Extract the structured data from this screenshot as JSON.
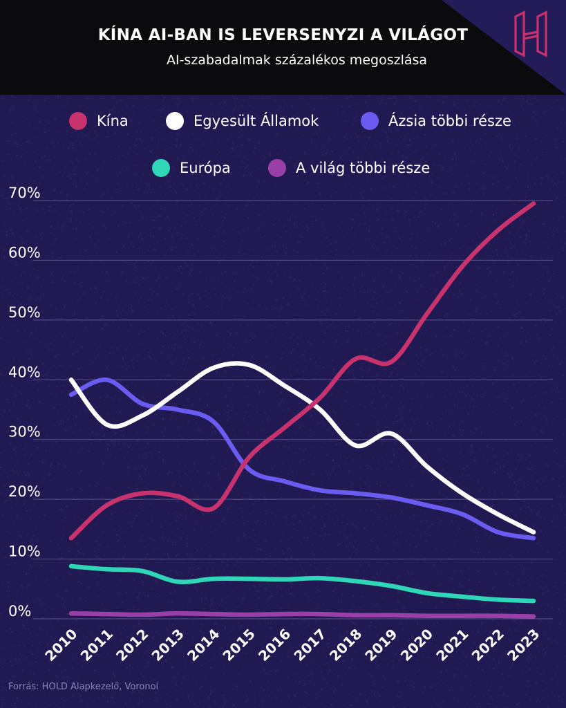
{
  "header": {
    "title": "KÍNA AI-BAN IS LEVERSENYZI A VILÁGOT",
    "subtitle": "AI-szabadalmak százalékos megoszlása"
  },
  "colors": {
    "background": "#211a52",
    "header_background": "#0b0b0d",
    "logo": "#c8326d",
    "grid": "#5a5490"
  },
  "logo": {
    "icon": "hold-h-logo-icon"
  },
  "legend": [
    {
      "label": "Kína",
      "color": "#c8326d"
    },
    {
      "label": "Egyesült Államok",
      "color": "#ffffff"
    },
    {
      "label": "Ázsia többi része",
      "color": "#6a5cf0"
    },
    {
      "label": "Európa",
      "color": "#2fd6b8"
    },
    {
      "label": "A világ többi része",
      "color": "#9b3fa8"
    }
  ],
  "chart_data": {
    "type": "line",
    "x": [
      "2010",
      "2011",
      "2012",
      "2013",
      "2014",
      "2015",
      "2016",
      "2017",
      "2018",
      "2019",
      "2020",
      "2021",
      "2022",
      "2023"
    ],
    "ylim": [
      0,
      70
    ],
    "yticks": [
      "0%",
      "10%",
      "20%",
      "30%",
      "40%",
      "50%",
      "60%",
      "70%"
    ],
    "grid": true,
    "legend_position": "top",
    "series": [
      {
        "name": "Kína",
        "color": "#c8326d",
        "values": [
          13.5,
          19,
          21,
          20.5,
          18.5,
          27,
          32,
          37,
          43.5,
          43,
          51,
          59,
          65,
          69.5
        ]
      },
      {
        "name": "Egyesült Államok",
        "color": "#ffffff",
        "values": [
          40,
          32.5,
          34,
          38,
          42,
          42.5,
          39,
          35,
          29,
          31,
          25.5,
          21,
          17.5,
          14.5
        ]
      },
      {
        "name": "Ázsia többi része",
        "color": "#6a5cf0",
        "values": [
          37.5,
          40,
          36,
          35,
          33,
          25,
          23,
          21.5,
          21,
          20.3,
          19,
          17.5,
          14.5,
          13.5
        ]
      },
      {
        "name": "Európa",
        "color": "#2fd6b8",
        "values": [
          8.8,
          8.3,
          8,
          6.2,
          6.7,
          6.7,
          6.6,
          6.8,
          6.3,
          5.5,
          4.3,
          3.7,
          3.2,
          3.0
        ]
      },
      {
        "name": "A világ többi része",
        "color": "#9b3fa8",
        "values": [
          0.9,
          0.8,
          0.7,
          0.9,
          0.8,
          0.7,
          0.8,
          0.8,
          0.6,
          0.6,
          0.5,
          0.5,
          0.5,
          0.4
        ]
      }
    ]
  },
  "source": "Forrás: HOLD Alapkezelő, Voronoi"
}
